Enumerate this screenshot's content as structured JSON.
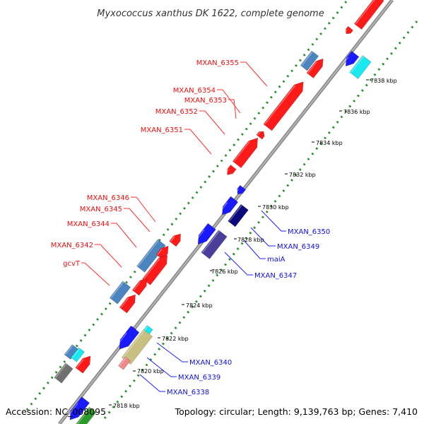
{
  "title": "Myxococcus xanthus DK 1622, complete genome",
  "accession": "Accession: NC_008095",
  "stats": "Topology: circular; Length: 9,139,763 bp; Genes: 7,410",
  "ticks": [
    "7818 kbp",
    "7820 kbp",
    "7822 kbp",
    "7824 kbp",
    "7826 kbp",
    "7828 kbp",
    "7830 kbp",
    "7832 kbp",
    "7834 kbp",
    "7836 kbp",
    "7838 kbp"
  ],
  "labels_red": [
    "MXAN_6355",
    "MXAN_6354",
    "MXAN_6353",
    "MXAN_6352",
    "MXAN_6351",
    "MXAN_6346",
    "MXAN_6345",
    "MXAN_6344",
    "MXAN_6342",
    "gcvT"
  ],
  "labels_blue": [
    "MXAN_6350",
    "MXAN_6349",
    "maiA",
    "MXAN_6347",
    "MXAN_6340",
    "MXAN_6339",
    "MXAN_6338"
  ],
  "colors": {
    "red": "#ff1a1a",
    "steel": "#4a85c0",
    "blue": "#1a1aff",
    "navy": "#0a0a7a",
    "slate": "#4a3e9a",
    "cyan": "#1ae8f0",
    "khaki": "#c8c080",
    "gray": "#707070",
    "pink": "#f08888",
    "green": "#2a9a2a"
  }
}
